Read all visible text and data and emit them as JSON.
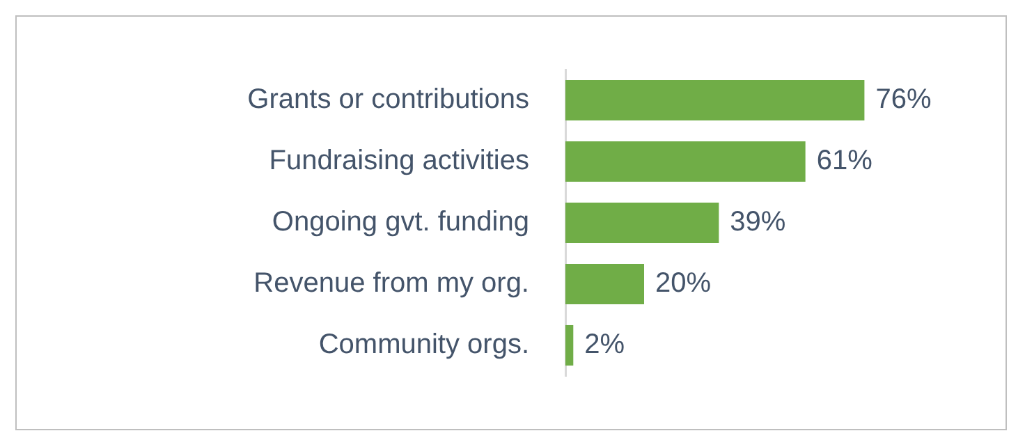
{
  "chart_data": {
    "type": "bar",
    "orientation": "horizontal",
    "categories": [
      "Grants or contributions",
      "Fundraising activities",
      "Ongoing gvt. funding",
      "Revenue from my org.",
      "Community orgs."
    ],
    "values": [
      76,
      61,
      39,
      20,
      2
    ],
    "color": "#70ad47",
    "value_labels": [
      "76%",
      "61%",
      "39%",
      "20%",
      "2%"
    ],
    "grid": false,
    "legend": false
  }
}
